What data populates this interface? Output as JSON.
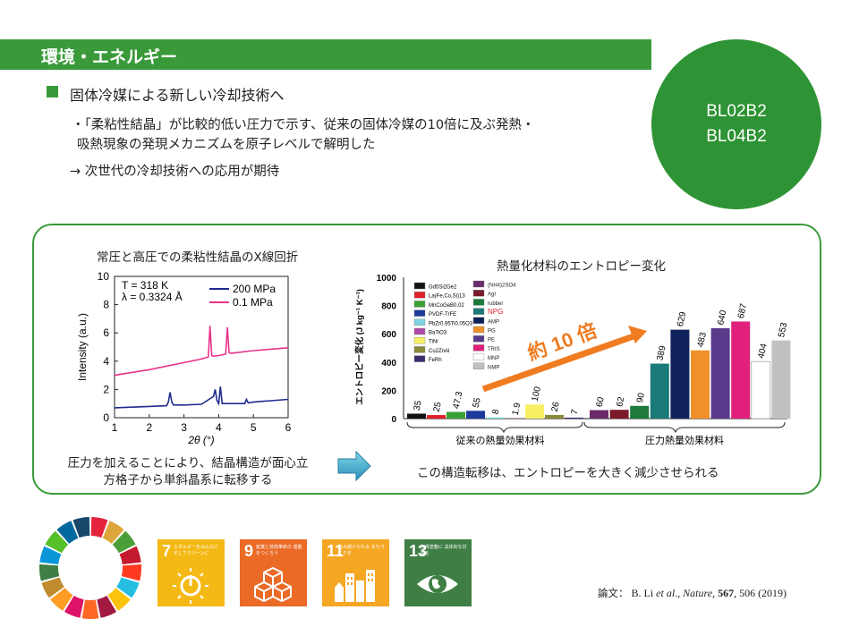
{
  "header": {
    "title": "環境・エネルギー"
  },
  "badge": {
    "line1": "BL02B2",
    "line2": "BL04B2"
  },
  "summary": {
    "heading": "固体冷媒による新しい冷却技術へ",
    "line1": "・「柔粘性結晶」が比較的低い圧力で示す、従来の固体冷媒の10倍に及ぶ発熱・",
    "line2": "吸熱現象の発現メカニズムを原子レベルで解明した",
    "line3": "→ 次世代の冷却技術への応用が期待"
  },
  "figure_left": {
    "title": "常圧と高圧での柔粘性結晶のX線回折",
    "caption_line1": "圧力を加えることにより、結晶構造が面心立",
    "caption_line2": "方格子から単斜晶系に転移する"
  },
  "figure_right": {
    "title": "熱量化材料のエントロピー変化",
    "caption": "この構造転移は、エントロピーを大きく減少させられる",
    "arrow_label": "約 10 倍"
  },
  "chart_data": [
    {
      "type": "line",
      "xlabel": "2θ (°)",
      "ylabel": "Intensity (a.u.)",
      "xlim": [
        1,
        6
      ],
      "ylim": [
        0,
        10
      ],
      "xticks": [
        1,
        2,
        3,
        4,
        5,
        6
      ],
      "yticks": [
        0,
        2,
        4,
        6,
        8,
        10
      ],
      "annotations": [
        "T = 318 K",
        "λ = 0.3324 Å"
      ],
      "series": [
        {
          "name": "200 MPa",
          "color": "#1f2b8f",
          "x": [
            1.0,
            1.5,
            2.0,
            2.5,
            2.55,
            2.6,
            2.65,
            2.7,
            3.0,
            3.5,
            3.85,
            3.9,
            3.95,
            4.0,
            4.05,
            4.1,
            4.5,
            4.75,
            4.8,
            4.85,
            5.0,
            5.2,
            5.5,
            6.0
          ],
          "values": [
            0.7,
            0.75,
            0.8,
            0.85,
            1.1,
            1.8,
            1.1,
            0.9,
            0.9,
            0.95,
            1.5,
            2.0,
            1.2,
            1.0,
            2.2,
            1.0,
            1.0,
            1.0,
            1.3,
            1.05,
            1.1,
            1.15,
            1.2,
            1.3
          ]
        },
        {
          "name": "0.1 MPa",
          "color": "#e8338a",
          "x": [
            1.0,
            1.5,
            2.0,
            2.5,
            3.0,
            3.5,
            3.7,
            3.75,
            3.8,
            3.85,
            4.0,
            4.2,
            4.25,
            4.3,
            4.35,
            4.5,
            5.0,
            5.5,
            6.0
          ],
          "values": [
            3.0,
            3.2,
            3.4,
            3.65,
            3.9,
            4.15,
            4.3,
            6.5,
            4.4,
            4.35,
            4.4,
            4.5,
            6.4,
            4.6,
            4.55,
            4.6,
            4.75,
            4.85,
            4.95
          ]
        }
      ]
    },
    {
      "type": "bar",
      "ylabel": "エントロピー変化 (J kg⁻¹ K⁻¹)",
      "ylim": [
        0,
        1000
      ],
      "yticks": [
        0,
        200,
        400,
        600,
        800,
        1000
      ],
      "groups": [
        {
          "label": "従来の熱量効果材料"
        },
        {
          "label": "圧力熱量効果材料"
        }
      ],
      "categories": [
        "Gd5Si2Ge2",
        "La(Fe,Co,Si)13",
        "MnCoGeB0.02",
        "PVDF-TrFE",
        "PbZr0.95Ti0.05O3",
        "BaTiO3",
        "TiNi",
        "Cu2ZnAl",
        "FeRh",
        "(NH4)2SO4",
        "AgI",
        "rubber",
        "NPG",
        "AMP",
        "PG",
        "PE",
        "TRIS",
        "MNP",
        "NMP"
      ],
      "values": [
        35,
        25,
        47.3,
        55,
        8,
        1.9,
        100,
        26,
        7,
        60,
        62,
        90,
        389,
        629,
        483,
        640,
        687,
        404,
        553
      ],
      "value_labels": [
        "35",
        "25",
        "47.3",
        "55",
        "8",
        "1.9",
        "100",
        "26",
        "7",
        "60",
        "62",
        "90",
        "389",
        "629",
        "483",
        "640",
        "687",
        "404",
        "553"
      ],
      "colors": [
        "#111111",
        "#e0202a",
        "#3aa035",
        "#1b3a9c",
        "#7fd3e0",
        "#b04aa8",
        "#f7f065",
        "#8b8a3a",
        "#3b2a6e",
        "#6b2a6a",
        "#7a1a2a",
        "#1e7a3a",
        "#1a7a78",
        "#10205a",
        "#f0902a",
        "#5a3a8a",
        "#e0207a",
        "#ffffff",
        "#c0c0c0"
      ],
      "legend_left": [
        "Gd5Si2Ge2",
        "La(Fe,Co,Si)13",
        "MnCoGeB0.02",
        "PVDF-TrFE",
        "PbZr0.95Ti0.05O3",
        "BaTiO3",
        "TiNi",
        "Cu2ZnAl",
        "FeRh"
      ],
      "legend_right": [
        "(NH4)2SO4",
        "AgI",
        "rubber",
        "NPG",
        "AMP",
        "PG",
        "PE",
        "TRIS",
        "MNP",
        "NMP"
      ],
      "highlight": "NPG",
      "highlight_color": "#e0202a"
    }
  ],
  "sdgs": {
    "tiles": [
      {
        "number": "7",
        "text": "エネルギーをみんなに そしてクリーンに",
        "color": "#f5b916",
        "icon": "power-icon"
      },
      {
        "number": "9",
        "text": "産業と技術革新の 基盤をつくろう",
        "color": "#ea6a26",
        "icon": "cubes-icon"
      },
      {
        "number": "11",
        "text": "住み続けられる まちづくりを",
        "color": "#f5a623",
        "icon": "city-icon"
      },
      {
        "number": "13",
        "text": "気候変動に 具体的な対策を",
        "color": "#3f7e44",
        "icon": "eye-globe-icon"
      }
    ]
  },
  "citation": {
    "label": "論文：",
    "authors": "B. Li",
    "etal": "et al",
    "journal": "Nature,",
    "volume": "567",
    "rest": ", 506 (2019)"
  }
}
